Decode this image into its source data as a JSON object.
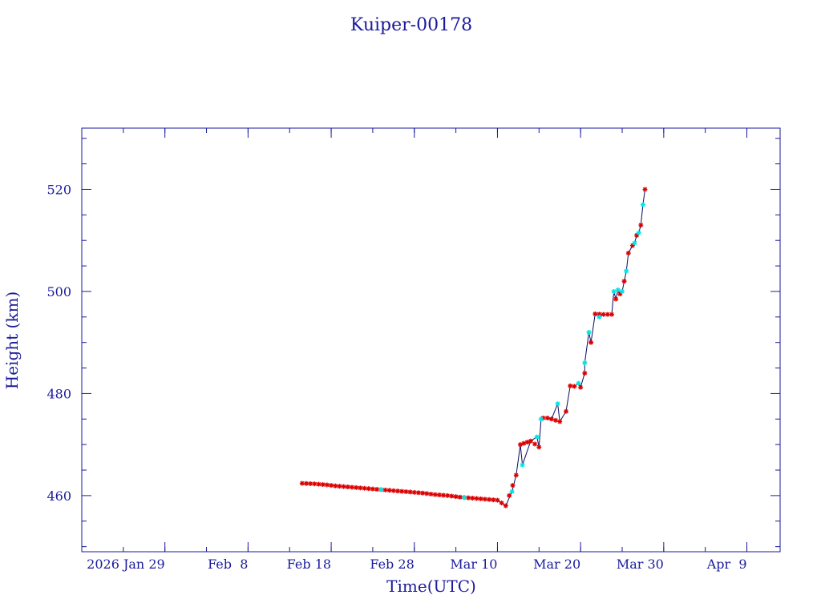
{
  "chart_data": {
    "type": "line",
    "title": "Kuiper-00178",
    "xlabel": "Time(UTC)",
    "ylabel": "Height (km)",
    "x_unit": "date",
    "xlim": [
      "2026-01-19",
      "2026-04-13"
    ],
    "ylim": [
      449,
      532
    ],
    "x_ticks": [
      {
        "date": "2026-01-29",
        "label": "2026 Jan 29"
      },
      {
        "date": "2026-02-08",
        "label": "Feb  8"
      },
      {
        "date": "2026-02-18",
        "label": "Feb 18"
      },
      {
        "date": "2026-02-28",
        "label": "Feb 28"
      },
      {
        "date": "2026-03-10",
        "label": "Mar 10"
      },
      {
        "date": "2026-03-20",
        "label": "Mar 20"
      },
      {
        "date": "2026-03-30",
        "label": "Mar 30"
      },
      {
        "date": "2026-04-09",
        "label": "Apr  9"
      }
    ],
    "y_ticks": [
      460,
      480,
      500,
      520
    ],
    "grid": false,
    "colors": {
      "axis": "#1a1a9c",
      "line": "#0a0a60",
      "marker_primary": "#dd0000",
      "marker_secondary": "#00e5e5"
    },
    "series": [
      {
        "marker": "star",
        "x": [
          "2026-02-14T12:00",
          "2026-02-16T00:00",
          "2026-02-17T12:00",
          "2026-02-18T12:00",
          "2026-02-20T00:00",
          "2026-02-21T12:00",
          "2026-02-23T00:00",
          "2026-02-24T12:00",
          "2026-02-26T00:00",
          "2026-02-27T12:00",
          "2026-03-01T00:00",
          "2026-03-02T12:00",
          "2026-03-04T00:00",
          "2026-03-05T12:00",
          "2026-03-07T00:00",
          "2026-03-08T12:00",
          "2026-03-10T00:00",
          "2026-03-11T00:00",
          "2026-03-12T06:00",
          "2026-03-12T18:00",
          "2026-03-14T00:00",
          "2026-03-15T00:00",
          "2026-03-15T12:00",
          "2026-03-16T00:00",
          "2026-03-16T12:00",
          "2026-03-17T12:00",
          "2026-03-18T06:00",
          "2026-03-18T18:00",
          "2026-03-19T06:00",
          "2026-03-20T00:00",
          "2026-03-20T12:00",
          "2026-03-21T06:00",
          "2026-03-21T18:00",
          "2026-03-22T18:00",
          "2026-03-23T18:00",
          "2026-03-24T06:00",
          "2026-03-24T18:00",
          "2026-03-25T06:00",
          "2026-03-25T18:00",
          "2026-03-26T06:00",
          "2026-03-26T18:00",
          "2026-03-27T06:00",
          "2026-03-27T18:00"
        ],
        "y": [
          462.4,
          462.3,
          462.1,
          461.9,
          461.7,
          461.5,
          461.3,
          461.1,
          460.9,
          460.7,
          460.5,
          460.2,
          460.0,
          459.7,
          459.5,
          459.3,
          459.1,
          458.0,
          464.0,
          470.0,
          470.7,
          469.5,
          475.2,
          475.2,
          475.0,
          474.5,
          476.5,
          481.5,
          481.4,
          481.2,
          484.0,
          490.0,
          495.6,
          495.5,
          495.5,
          498.5,
          499.5,
          502.0,
          507.5,
          509.0,
          511.0,
          513.0,
          520.0
        ]
      },
      {
        "marker": "star",
        "x": [
          "2026-02-24T00:00",
          "2026-03-06T00:00",
          "2026-03-11T18:00",
          "2026-03-13T00:00",
          "2026-03-14T18:00",
          "2026-03-15T06:00",
          "2026-03-17T06:00",
          "2026-03-19T18:00",
          "2026-03-20T12:00",
          "2026-03-21T00:00",
          "2026-03-22T06:00",
          "2026-03-24T00:00",
          "2026-03-24T12:00",
          "2026-03-25T00:00",
          "2026-03-25T12:00",
          "2026-03-26T12:00",
          "2026-03-27T00:00",
          "2026-03-27T12:00"
        ],
        "y": [
          461.2,
          459.6,
          460.8,
          466.0,
          471.5,
          475.0,
          478.0,
          482.0,
          486.0,
          492.0,
          495.0,
          500.0,
          500.3,
          500.0,
          504.0,
          509.5,
          511.5,
          517.0
        ]
      }
    ]
  }
}
